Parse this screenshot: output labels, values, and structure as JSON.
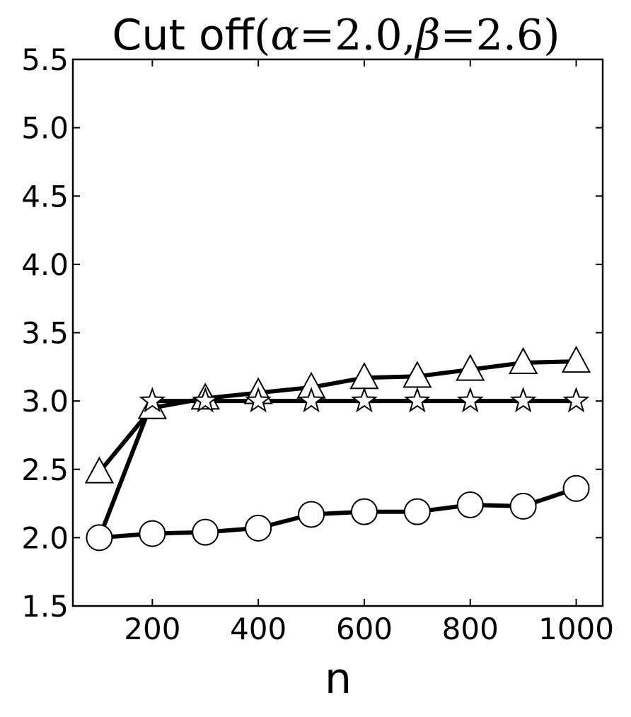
{
  "chart_data": {
    "type": "line",
    "title": {
      "prefix": "Cut off",
      "params": [
        {
          "symbol": "α",
          "value": "2.0"
        },
        {
          "symbol": "β",
          "value": "2.6"
        }
      ]
    },
    "xlabel": "n",
    "ylabel": "",
    "xlim": [
      50,
      1050
    ],
    "ylim": [
      1.5,
      5.5
    ],
    "x_ticks": [
      200,
      400,
      600,
      800,
      1000
    ],
    "y_ticks": [
      "1.5",
      "2.0",
      "2.5",
      "3.0",
      "3.5",
      "4.0",
      "4.5",
      "5.0",
      "5.5"
    ],
    "grid": false,
    "legend": "none",
    "x": [
      100,
      200,
      300,
      400,
      500,
      600,
      700,
      800,
      900,
      1000
    ],
    "series": [
      {
        "marker": "triangle",
        "values": [
          2.48,
          2.95,
          3.02,
          3.06,
          3.1,
          3.17,
          3.18,
          3.23,
          3.28,
          3.29
        ]
      },
      {
        "marker": "star",
        "values": [
          2.0,
          3.0,
          3.0,
          3.0,
          3.0,
          3.0,
          3.0,
          3.0,
          3.0,
          3.0
        ]
      },
      {
        "marker": "circle",
        "values": [
          2.0,
          2.03,
          2.04,
          2.07,
          2.17,
          2.19,
          2.19,
          2.24,
          2.23,
          2.36
        ]
      }
    ],
    "colors": {
      "line": "#000000",
      "marker_fill": "#ffffff",
      "marker_stroke": "#000000"
    }
  }
}
